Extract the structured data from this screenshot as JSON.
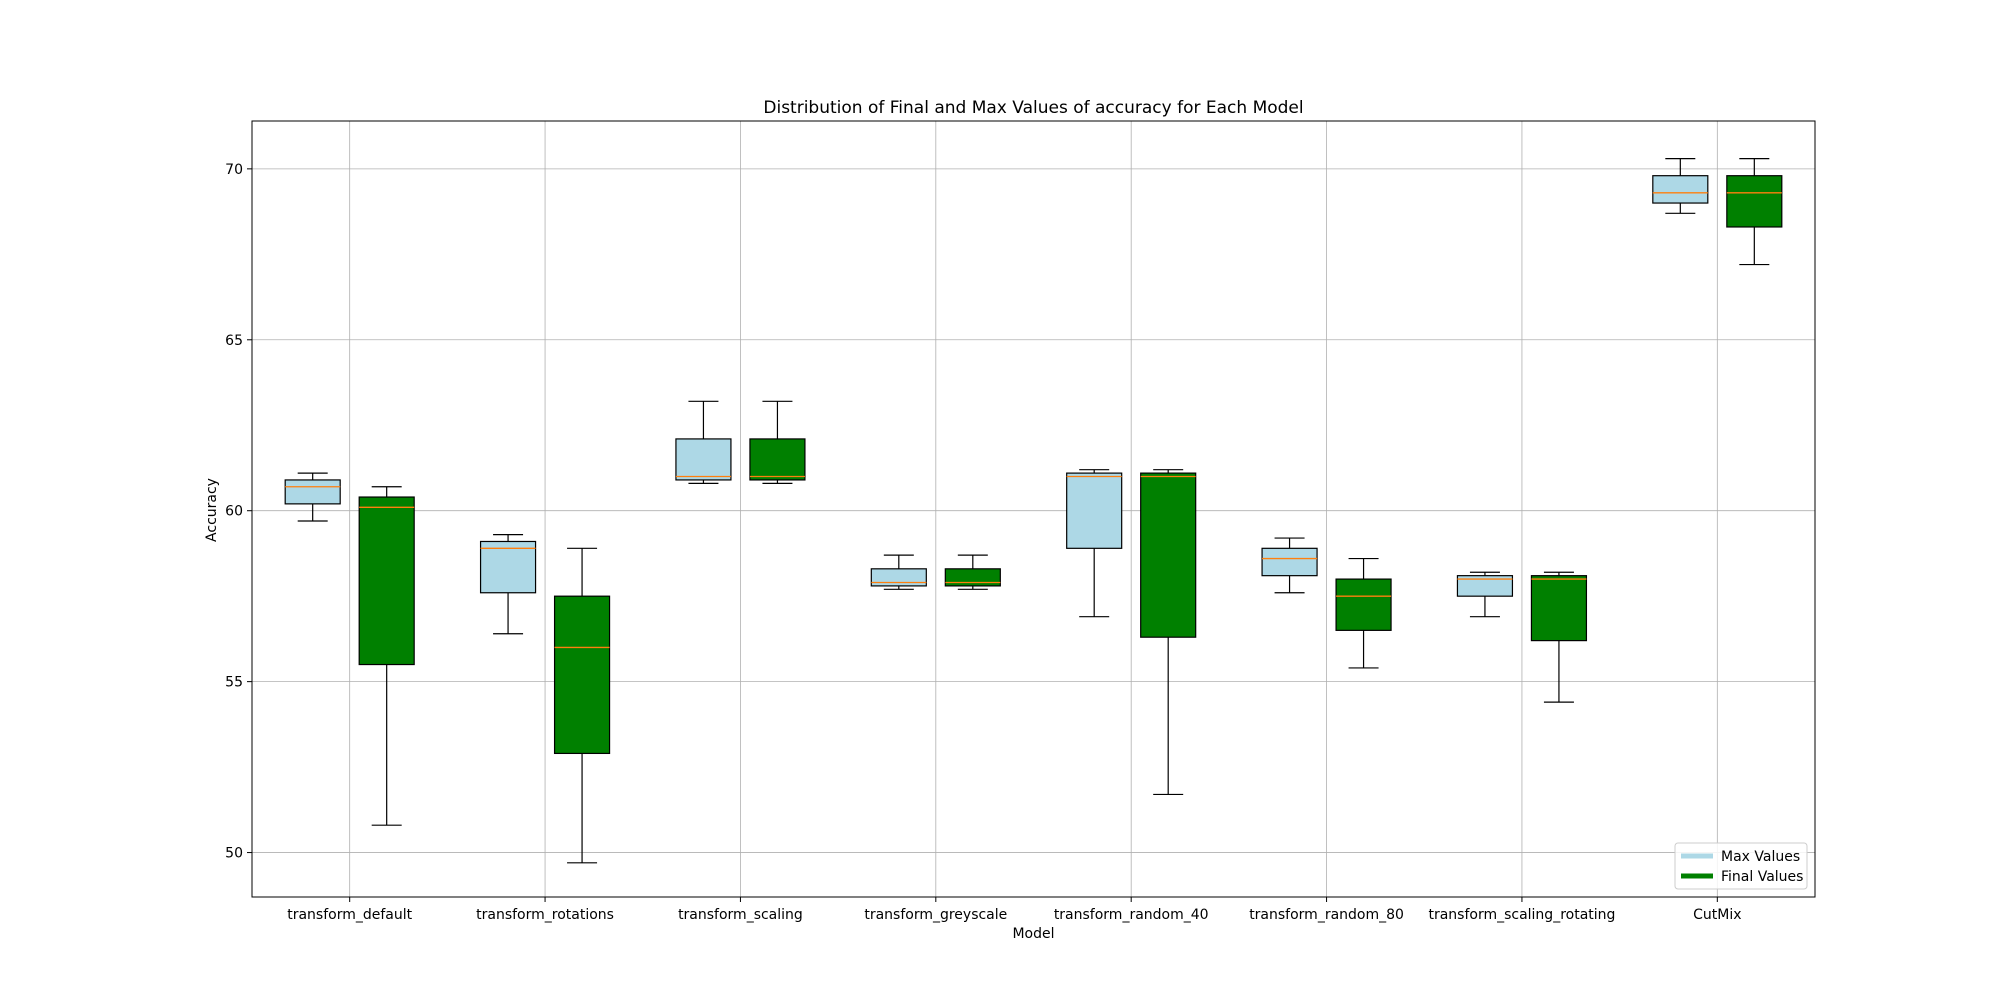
{
  "chart_data": {
    "type": "boxplot",
    "title": "Distribution of Final and Max Values of accuracy for Each Model",
    "xlabel": "Model",
    "ylabel": "Accuracy",
    "ylim": [
      48.7,
      71.4
    ],
    "yticks": [
      50,
      55,
      60,
      65,
      70
    ],
    "grid": true,
    "legend_position": "lower-right",
    "categories": [
      "transform_default",
      "transform_rotations",
      "transform_scaling",
      "transform_greyscale",
      "transform_random_40",
      "transform_random_80",
      "transform_scaling_rotating",
      "CutMix"
    ],
    "series": [
      {
        "name": "Max Values",
        "color": "#add8e6",
        "boxes": [
          {
            "min": 59.7,
            "q1": 60.2,
            "median": 60.7,
            "q3": 60.9,
            "max": 61.1
          },
          {
            "min": 56.4,
            "q1": 57.6,
            "median": 58.9,
            "q3": 59.1,
            "max": 59.3
          },
          {
            "min": 60.8,
            "q1": 60.9,
            "median": 61.0,
            "q3": 62.1,
            "max": 63.2
          },
          {
            "min": 57.7,
            "q1": 57.8,
            "median": 57.9,
            "q3": 58.3,
            "max": 58.7
          },
          {
            "min": 56.9,
            "q1": 58.9,
            "median": 61.0,
            "q3": 61.1,
            "max": 61.2
          },
          {
            "min": 57.6,
            "q1": 58.1,
            "median": 58.6,
            "q3": 58.9,
            "max": 59.2
          },
          {
            "min": 56.9,
            "q1": 57.5,
            "median": 58.0,
            "q3": 58.1,
            "max": 58.2
          },
          {
            "min": 68.7,
            "q1": 69.0,
            "median": 69.3,
            "q3": 69.8,
            "max": 70.3
          }
        ]
      },
      {
        "name": "Final Values",
        "color": "#008000",
        "boxes": [
          {
            "min": 50.8,
            "q1": 55.5,
            "median": 60.1,
            "q3": 60.4,
            "max": 60.7
          },
          {
            "min": 49.7,
            "q1": 52.9,
            "median": 56.0,
            "q3": 57.5,
            "max": 58.9
          },
          {
            "min": 60.8,
            "q1": 60.9,
            "median": 61.0,
            "q3": 62.1,
            "max": 63.2
          },
          {
            "min": 57.7,
            "q1": 57.8,
            "median": 57.9,
            "q3": 58.3,
            "max": 58.7
          },
          {
            "min": 51.7,
            "q1": 56.3,
            "median": 61.0,
            "q3": 61.1,
            "max": 61.2
          },
          {
            "min": 55.4,
            "q1": 56.5,
            "median": 57.5,
            "q3": 58.0,
            "max": 58.6
          },
          {
            "min": 54.4,
            "q1": 56.2,
            "median": 58.0,
            "q3": 58.1,
            "max": 58.2
          },
          {
            "min": 67.2,
            "q1": 68.3,
            "median": 69.3,
            "q3": 69.8,
            "max": 70.3
          }
        ]
      }
    ],
    "median_color": "#ff7f0e"
  }
}
